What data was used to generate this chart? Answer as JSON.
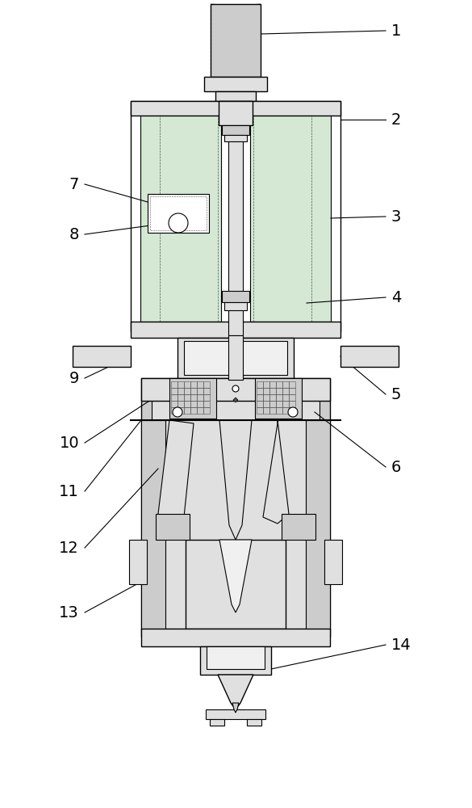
{
  "title": "",
  "background_color": "#ffffff",
  "line_color": "#000000",
  "dark_gray": "#555555",
  "mid_gray": "#888888",
  "light_gray": "#cccccc",
  "lighter_gray": "#e0e0e0",
  "very_light_gray": "#f0f0f0",
  "green_tint": "#d4e8d4",
  "label_fontsize": 14
}
